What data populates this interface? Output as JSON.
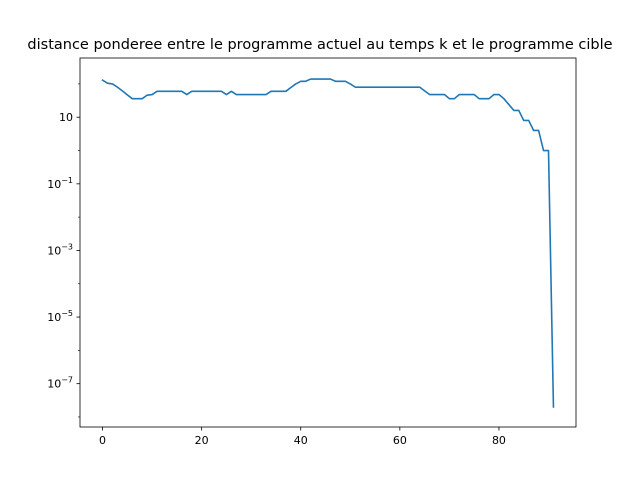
{
  "chart_data": {
    "type": "line",
    "title": "distance ponderee entre le programme actuel au temps k et le programme cible",
    "xlabel": "",
    "ylabel": "",
    "xlim": [
      -4.55,
      95.55
    ],
    "ylim": [
      5e-09,
      600
    ],
    "yscale": "log",
    "grid": false,
    "x_ticks": [
      0,
      20,
      40,
      60,
      80
    ],
    "x_tick_labels": [
      "0",
      "20",
      "40",
      "60",
      "80"
    ],
    "y_ticks": [
      1e-07,
      1e-05,
      0.001,
      0.1,
      10
    ],
    "y_tick_labels": [
      {
        "base": "10",
        "exp": "−7"
      },
      {
        "base": "10",
        "exp": "−5"
      },
      {
        "base": "10",
        "exp": "−3"
      },
      {
        "base": "10",
        "exp": "−1"
      },
      {
        "base": "10",
        "exp": ""
      }
    ],
    "series": [
      {
        "name": "",
        "color": "#1f77b4",
        "x": [
          0,
          1,
          2,
          3,
          4,
          5,
          6,
          7,
          8,
          9,
          10,
          11,
          12,
          13,
          14,
          15,
          16,
          17,
          18,
          19,
          20,
          21,
          22,
          23,
          24,
          25,
          26,
          27,
          28,
          29,
          30,
          31,
          32,
          33,
          34,
          35,
          36,
          37,
          38,
          39,
          40,
          41,
          42,
          43,
          44,
          45,
          46,
          47,
          48,
          49,
          50,
          51,
          52,
          53,
          54,
          55,
          56,
          57,
          58,
          59,
          60,
          61,
          62,
          63,
          64,
          65,
          66,
          67,
          68,
          69,
          70,
          71,
          72,
          73,
          74,
          75,
          76,
          77,
          78,
          79,
          80,
          81,
          82,
          83,
          84,
          85,
          86,
          87,
          88,
          89,
          90,
          91
        ],
        "values": [
          130,
          105,
          100,
          80,
          62,
          47,
          36,
          36,
          36,
          46,
          48,
          60,
          60,
          60,
          60,
          60,
          60,
          48,
          60,
          60,
          60,
          60,
          60,
          60,
          60,
          48,
          60,
          48,
          48,
          48,
          48,
          48,
          48,
          48,
          60,
          60,
          60,
          60,
          78,
          100,
          120,
          120,
          140,
          140,
          140,
          140,
          140,
          120,
          120,
          120,
          100,
          80,
          80,
          80,
          80,
          80,
          80,
          80,
          80,
          80,
          80,
          80,
          80,
          80,
          80,
          62,
          48,
          48,
          48,
          48,
          36,
          36,
          48,
          48,
          48,
          48,
          36,
          36,
          36,
          48,
          48,
          36,
          24,
          16,
          16,
          8,
          8,
          4,
          4,
          1,
          1,
          2e-08
        ]
      }
    ]
  }
}
